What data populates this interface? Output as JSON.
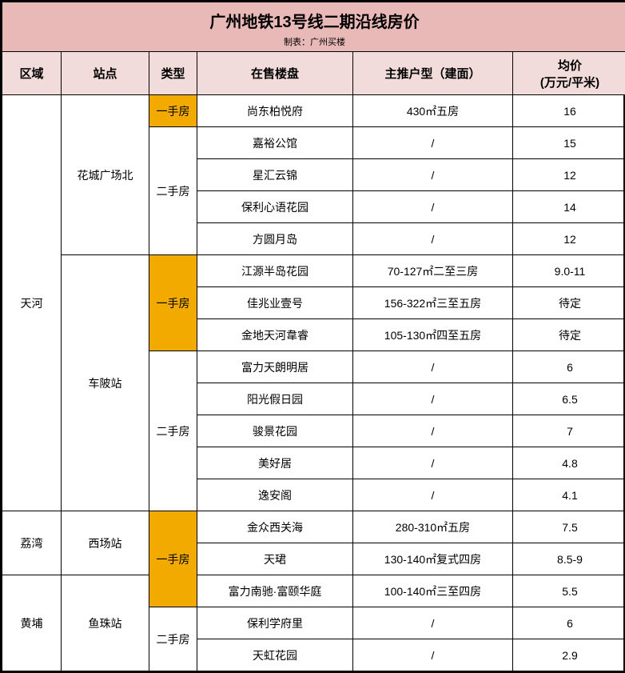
{
  "colors": {
    "title_bg": "#e9b9b8",
    "header_bg": "#f2dcdb",
    "highlight_bg": "#f2a900",
    "border": "#000000",
    "text": "#000000",
    "background": "#ffffff"
  },
  "title": "广州地铁13号线二期沿线房价",
  "subtitle": "制表：广州买楼",
  "headers": {
    "region": "区域",
    "station": "站点",
    "type": "类型",
    "project": "在售楼盘",
    "unit": "主推户型（建面）",
    "price": "均价\n(万元/平米)"
  },
  "type_labels": {
    "primary": "一手房",
    "secondary": "二手房"
  },
  "regions": [
    {
      "name": "天河",
      "stations": [
        {
          "name": "花城广场北",
          "groups": [
            {
              "type": "primary",
              "rows": [
                {
                  "project": "尚东柏悦府",
                  "unit": "430㎡五房",
                  "price": "16"
                }
              ]
            },
            {
              "type": "secondary",
              "rows": [
                {
                  "project": "嘉裕公馆",
                  "unit": "/",
                  "price": "15"
                },
                {
                  "project": "星汇云锦",
                  "unit": "/",
                  "price": "12"
                },
                {
                  "project": "保利心语花园",
                  "unit": "/",
                  "price": "14"
                },
                {
                  "project": "方圆月岛",
                  "unit": "/",
                  "price": "12"
                }
              ]
            }
          ]
        },
        {
          "name": "车陂站",
          "groups": [
            {
              "type": "primary",
              "rows": [
                {
                  "project": "江源半岛花园",
                  "unit": "70-127㎡二至三房",
                  "price": "9.0-11"
                },
                {
                  "project": "佳兆业壹号",
                  "unit": "156-322㎡三至五房",
                  "price": "待定"
                },
                {
                  "project": "金地天河韋睿",
                  "unit": "105-130㎡四至五房",
                  "price": "待定"
                }
              ]
            },
            {
              "type": "secondary",
              "rows": [
                {
                  "project": "富力天朗明居",
                  "unit": "/",
                  "price": "6"
                },
                {
                  "project": "阳光假日园",
                  "unit": "/",
                  "price": "6.5"
                },
                {
                  "project": "骏景花园",
                  "unit": "/",
                  "price": "7"
                },
                {
                  "project": "美好居",
                  "unit": "/",
                  "price": "4.8"
                },
                {
                  "project": "逸安阁",
                  "unit": "/",
                  "price": "4.1"
                }
              ]
            }
          ]
        }
      ]
    },
    {
      "name": "荔湾",
      "stations": [
        {
          "name": "西场站",
          "groups": [
            {
              "type": "primary",
              "shared_down": true,
              "rows": [
                {
                  "project": "金众西关海",
                  "unit": "280-310㎡五房",
                  "price": "7.5"
                },
                {
                  "project": "天珺",
                  "unit": "130-140㎡复式四房",
                  "price": "8.5-9"
                }
              ]
            }
          ]
        }
      ]
    },
    {
      "name": "黄埔",
      "stations": [
        {
          "name": "鱼珠站",
          "groups": [
            {
              "type": "primary",
              "shared_up": true,
              "rows": [
                {
                  "project": "富力南驰·富颐华庭",
                  "unit": "100-140㎡三至四房",
                  "price": "5.5"
                }
              ]
            },
            {
              "type": "secondary",
              "rows": [
                {
                  "project": "保利学府里",
                  "unit": "/",
                  "price": "6"
                },
                {
                  "project": "天虹花园",
                  "unit": "/",
                  "price": "2.9"
                }
              ]
            }
          ]
        }
      ]
    }
  ]
}
